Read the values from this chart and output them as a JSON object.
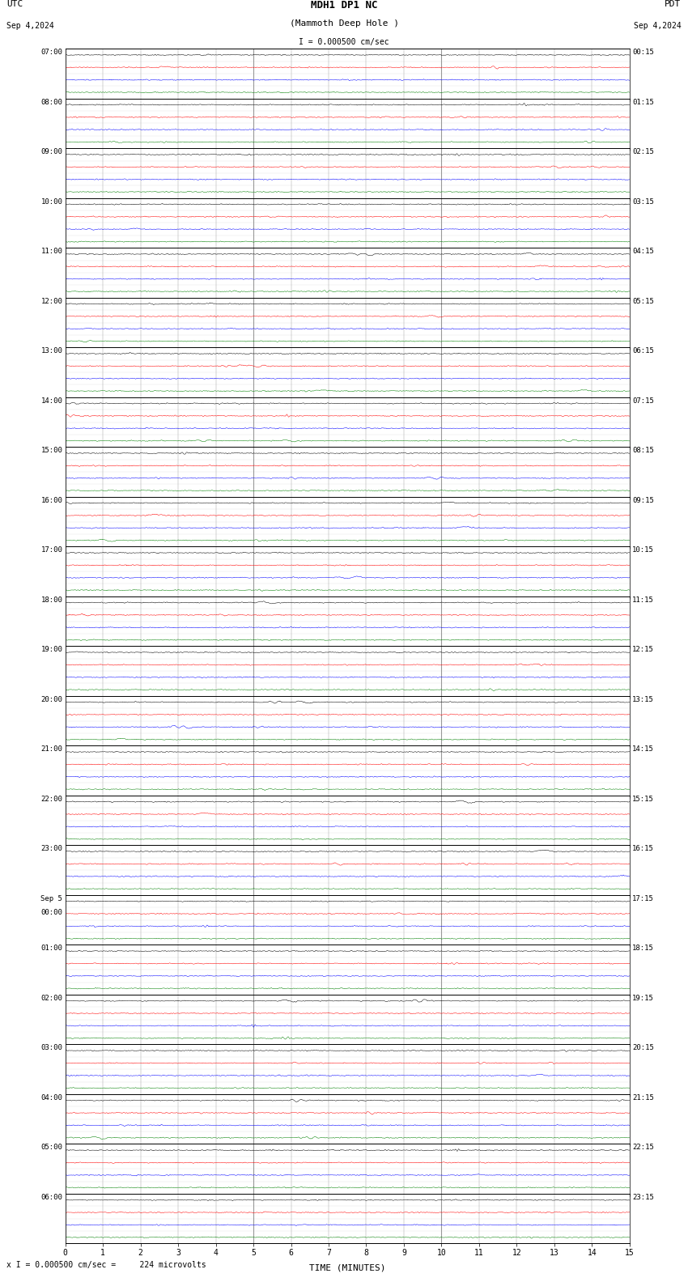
{
  "title_line1": "MDH1 DP1 NC",
  "title_line2": "(Mammoth Deep Hole )",
  "scale_text": "I = 0.000500 cm/sec",
  "utc_label": "UTC",
  "pdt_label": "PDT",
  "date_left": "Sep 4,2024",
  "date_right": "Sep 4,2024",
  "footer_text": "x I = 0.000500 cm/sec =     224 microvolts",
  "xlabel": "TIME (MINUTES)",
  "num_rows": 24,
  "x_max": 15,
  "bg_color": "#ffffff",
  "trace_colors": [
    "#000000",
    "#ff0000",
    "#0000ff",
    "#008000"
  ],
  "fig_width": 8.5,
  "fig_height": 15.84,
  "left_labels_utc": [
    "07:00",
    "08:00",
    "09:00",
    "10:00",
    "11:00",
    "12:00",
    "13:00",
    "14:00",
    "15:00",
    "16:00",
    "17:00",
    "18:00",
    "19:00",
    "20:00",
    "21:00",
    "22:00",
    "23:00",
    "Sep 5\n00:00",
    "01:00",
    "02:00",
    "03:00",
    "04:00",
    "05:00",
    "06:00"
  ],
  "right_labels_pdt": [
    "00:15",
    "01:15",
    "02:15",
    "03:15",
    "04:15",
    "05:15",
    "06:15",
    "07:15",
    "08:15",
    "09:15",
    "10:15",
    "11:15",
    "12:15",
    "13:15",
    "14:15",
    "15:15",
    "16:15",
    "17:15",
    "18:15",
    "19:15",
    "20:15",
    "21:15",
    "22:15",
    "23:15"
  ],
  "noise_seed": 42
}
